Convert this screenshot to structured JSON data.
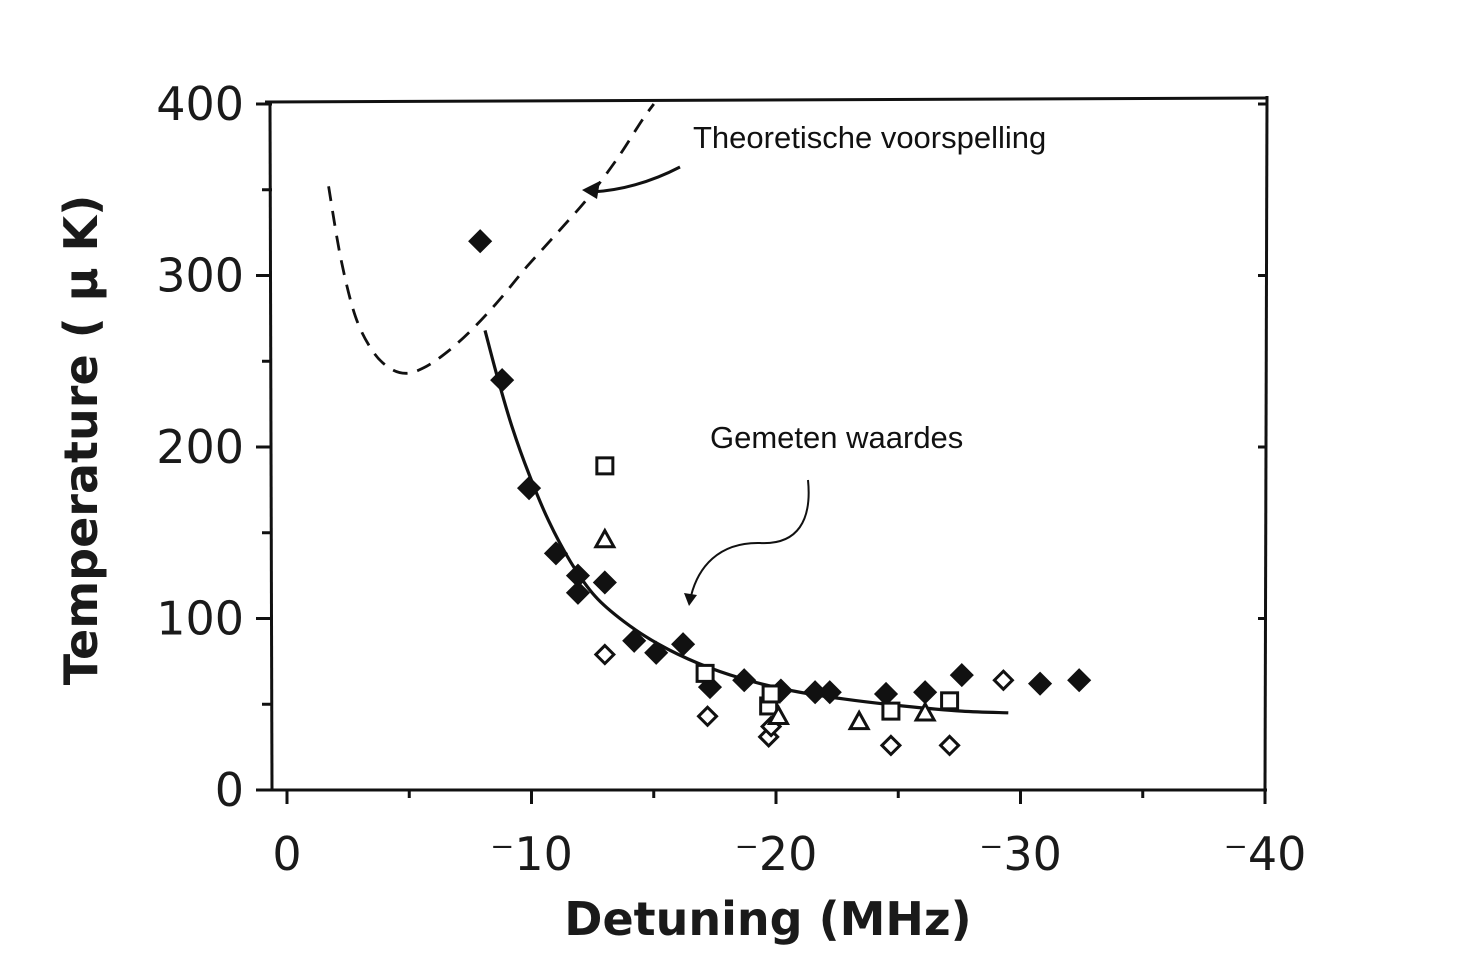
{
  "chart_data": {
    "type": "scatter",
    "title": "",
    "xlabel": "Detuning (MHz)",
    "ylabel": "Temperature ( μ K)",
    "xlim": [
      0,
      -40
    ],
    "ylim": [
      0,
      400
    ],
    "x_ticks": [
      {
        "value": 0,
        "label": "0"
      },
      {
        "value": -10,
        "label": "⁻10"
      },
      {
        "value": -20,
        "label": "⁻20"
      },
      {
        "value": -30,
        "label": "⁻30"
      },
      {
        "value": -40,
        "label": "⁻40"
      }
    ],
    "y_ticks": [
      {
        "value": 0,
        "label": "0"
      },
      {
        "value": 100,
        "label": "100"
      },
      {
        "value": 200,
        "label": "200"
      },
      {
        "value": 300,
        "label": "300"
      },
      {
        "value": 400,
        "label": "400"
      }
    ],
    "annotations": [
      {
        "text": "Theoretische voorspelling",
        "target": "theory"
      },
      {
        "text": "Gemeten waardes",
        "target": "fit"
      }
    ],
    "series": [
      {
        "marker": "filled-diamond",
        "x": [
          -7.9,
          -8.8,
          -9.9,
          -11,
          -11.9,
          -11.9,
          -13,
          -14.2,
          -15.1,
          -16.2,
          -17.3,
          -18.7,
          -20.2,
          -21.6,
          -22.2,
          -24.5,
          -26.1,
          -27.6,
          -30.8,
          -32.4
        ],
        "y": [
          320,
          239,
          176,
          138,
          125,
          115,
          121,
          87,
          80,
          85,
          60,
          64,
          58,
          57,
          57,
          56,
          57,
          67,
          62,
          64
        ]
      },
      {
        "marker": "open-diamond",
        "x": [
          -13,
          -17.2,
          -19.7,
          -19.8,
          -24.7,
          -27.1,
          -29.3
        ],
        "y": [
          79,
          43,
          31,
          37,
          26,
          26,
          64
        ]
      },
      {
        "marker": "open-square",
        "x": [
          -13,
          -17.1,
          -19.7,
          -19.8,
          -24.7,
          -27.1
        ],
        "y": [
          189,
          68,
          49,
          56,
          46,
          52
        ]
      },
      {
        "marker": "open-triangle",
        "x": [
          -13,
          -20.1,
          -23.4,
          -26.1
        ],
        "y": [
          146,
          43,
          40,
          45
        ]
      }
    ],
    "curves": [
      {
        "id": "theory",
        "style": "dashed",
        "x": [
          -1.7,
          -2.2,
          -2.8,
          -3.5,
          -4.2,
          -4.9,
          -5.7,
          -6.6,
          -7.6,
          -8.7,
          -9.8,
          -11,
          -12.3,
          -13.5,
          -14.5,
          -15
        ],
        "y": [
          352,
          310,
          276,
          256,
          246,
          243,
          247,
          256,
          269,
          286,
          305,
          324,
          345,
          368,
          390,
          400
        ]
      },
      {
        "id": "fit",
        "style": "solid",
        "x": [
          -8.1,
          -8.6,
          -9.2,
          -9.9,
          -10.7,
          -11.6,
          -12.6,
          -13.8,
          -15.2,
          -16.8,
          -18.6,
          -20.6,
          -22.8,
          -25.2,
          -27.6,
          -29.5
        ],
        "y": [
          268,
          241,
          212,
          184,
          157,
          133,
          113,
          98,
          85,
          74,
          65,
          58,
          53,
          49,
          46,
          45
        ]
      }
    ]
  }
}
